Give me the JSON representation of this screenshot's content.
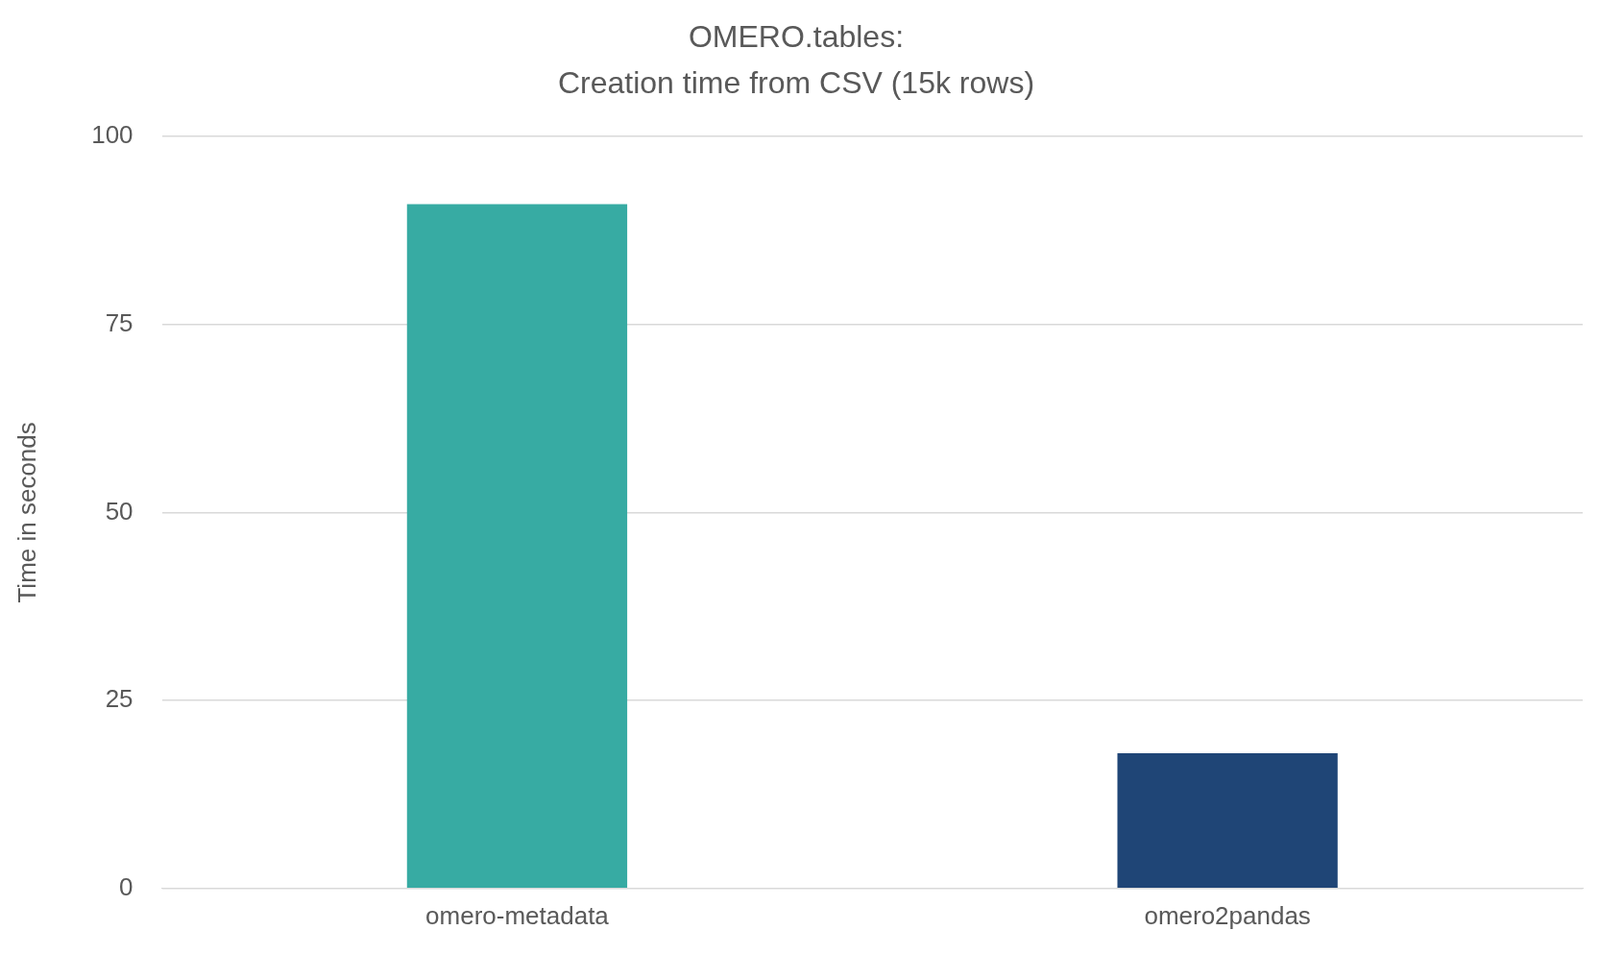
{
  "chart_data": {
    "type": "bar",
    "title": [
      "OMERO.tables:",
      "Creation time from CSV (15k rows)"
    ],
    "y_label": "Time in seconds",
    "categories": [
      "omero-metadata",
      "omero2pandas"
    ],
    "values": [
      91,
      18
    ],
    "colors": [
      "#37aba3",
      "#1f4576"
    ],
    "ylim": [
      0,
      100
    ],
    "yticks": [
      0,
      25,
      50,
      75,
      100
    ],
    "grid": true
  }
}
